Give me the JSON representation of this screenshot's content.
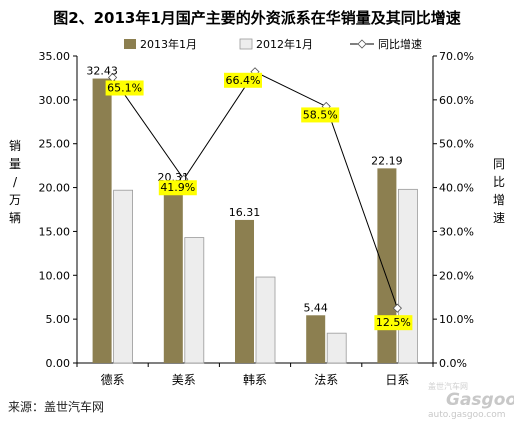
{
  "chart_data": {
    "type": "bar",
    "title": "图2、2013年1月国产主要的外资派系在华销量及其同比增速",
    "ylabel": "销量/万辆",
    "y2label": "同比增速",
    "categories": [
      "德系",
      "美系",
      "韩系",
      "法系",
      "日系"
    ],
    "series": [
      {
        "name": "2013年1月",
        "type": "bar",
        "axis": "left",
        "values": [
          32.43,
          20.31,
          16.31,
          5.44,
          22.19
        ],
        "data_labels": [
          "32.43",
          "20.31",
          "16.31",
          "5.44",
          "22.19"
        ]
      },
      {
        "name": "2012年1月",
        "type": "bar",
        "axis": "left",
        "values": [
          19.7,
          14.3,
          9.8,
          3.4,
          19.8
        ]
      },
      {
        "name": "同比增速",
        "type": "line",
        "axis": "right",
        "values": [
          65.1,
          41.9,
          66.4,
          58.5,
          12.5
        ],
        "data_labels": [
          "65.1%",
          "41.9%",
          "66.4%",
          "58.5%",
          "12.5%"
        ]
      }
    ],
    "ylim": [
      0,
      35
    ],
    "y_ticks": [
      "0.00",
      "5.00",
      "10.00",
      "15.00",
      "20.00",
      "25.00",
      "30.00",
      "35.00"
    ],
    "y2lim": [
      0,
      70
    ],
    "y2_ticks": [
      "0.0%",
      "10.0%",
      "20.0%",
      "30.0%",
      "40.0%",
      "50.0%",
      "60.0%",
      "70.0%"
    ],
    "grid": false,
    "legend_position": "top",
    "colors": {
      "bar2013": "#8c7f50",
      "bar2012": "#ededed",
      "line": "#000000",
      "label_bg": "#ffff00"
    }
  },
  "source_note": "来源：盖世汽车网",
  "watermark": {
    "top": "盖世汽车网",
    "brand": "Gasgoo",
    "url": "auto.gasgoo.com"
  }
}
